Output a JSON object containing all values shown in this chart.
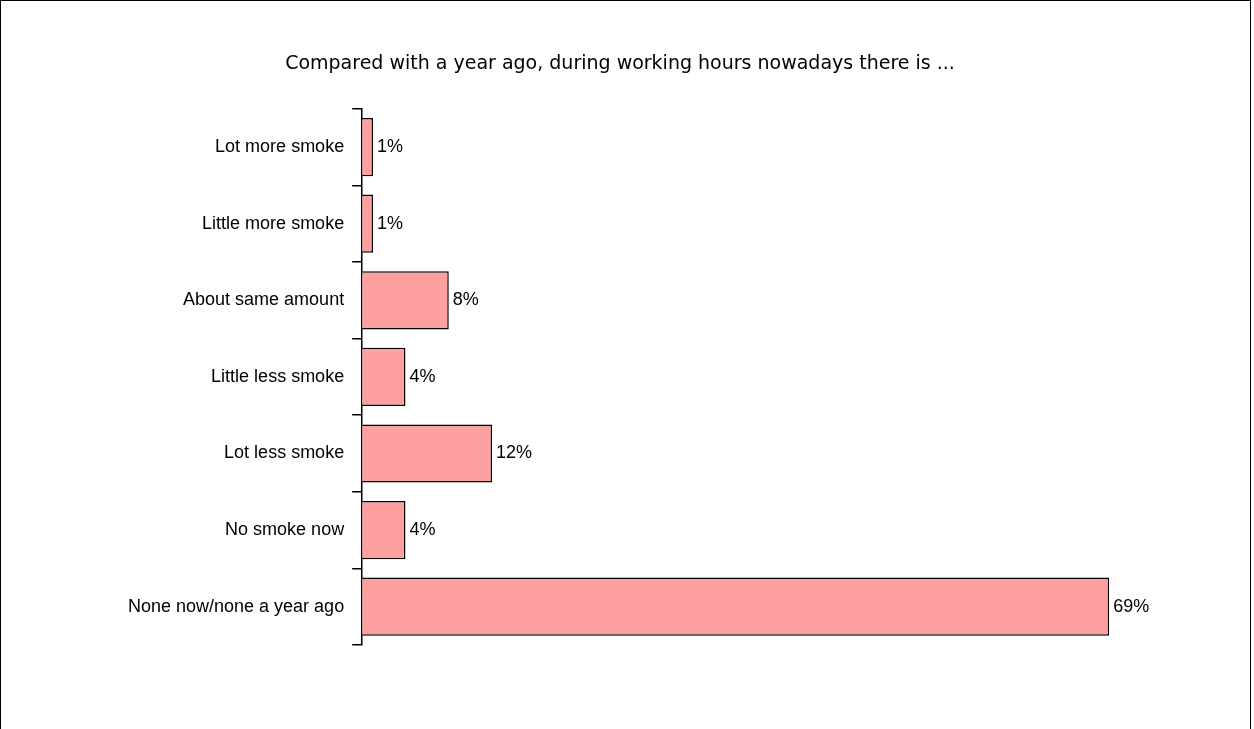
{
  "chart_data": {
    "type": "bar",
    "orientation": "horizontal",
    "title": "Compared with a year ago, during working hours nowadays there is ...",
    "categories": [
      "Lot more smoke",
      "Little more smoke",
      "About same amount",
      "Little less smoke",
      "Lot less smoke",
      "No smoke now",
      "None now/none a year ago"
    ],
    "values": [
      1,
      1,
      8,
      4,
      12,
      4,
      69
    ],
    "value_labels": [
      "1%",
      "1%",
      "8%",
      "4%",
      "12%",
      "4%",
      "69%"
    ],
    "color": "#ffa0a0",
    "tick_labels": "y",
    "legend": false
  }
}
